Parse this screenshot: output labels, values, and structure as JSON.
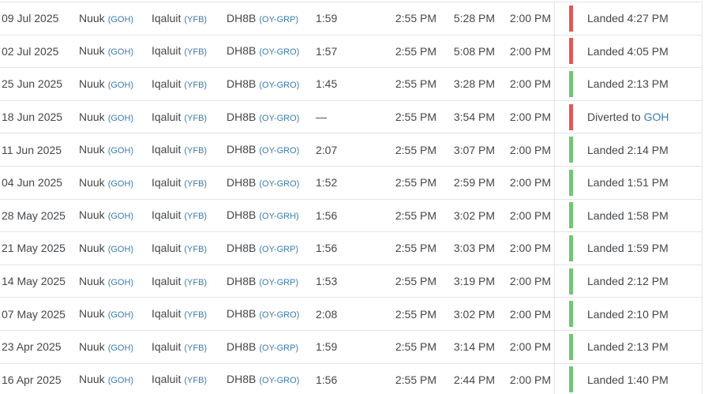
{
  "theme": {
    "link_blue": "#3a7cb1",
    "text_dark": "#43474b",
    "border": "#e3e3e3",
    "status_red": "#e25757",
    "status_green": "#71c673"
  },
  "table": {
    "rows": [
      {
        "date": "09 Jul 2025",
        "from_city": "Nuuk",
        "from_code": "(GOH)",
        "to_city": "Iqaluit",
        "to_code": "(YFB)",
        "aircraft": "DH8B",
        "registration": "(OY-GRP)",
        "flight_time": "1:59",
        "std": "2:55 PM",
        "atd": "5:28 PM",
        "sta": "2:00 PM",
        "status": "Landed 4:27 PM",
        "status_color": "red"
      },
      {
        "date": "02 Jul 2025",
        "from_city": "Nuuk",
        "from_code": "(GOH)",
        "to_city": "Iqaluit",
        "to_code": "(YFB)",
        "aircraft": "DH8B",
        "registration": "(OY-GRO)",
        "flight_time": "1:57",
        "std": "2:55 PM",
        "atd": "5:08 PM",
        "sta": "2:00 PM",
        "status": "Landed 4:05 PM",
        "status_color": "red"
      },
      {
        "date": "25 Jun 2025",
        "from_city": "Nuuk",
        "from_code": "(GOH)",
        "to_city": "Iqaluit",
        "to_code": "(YFB)",
        "aircraft": "DH8B",
        "registration": "(OY-GRO)",
        "flight_time": "1:45",
        "std": "2:55 PM",
        "atd": "3:28 PM",
        "sta": "2:00 PM",
        "status": "Landed 2:13 PM",
        "status_color": "green"
      },
      {
        "date": "18 Jun 2025",
        "from_city": "Nuuk",
        "from_code": "(GOH)",
        "to_city": "Iqaluit",
        "to_code": "(YFB)",
        "aircraft": "DH8B",
        "registration": "(OY-GRO)",
        "flight_time": "—",
        "std": "2:55 PM",
        "atd": "3:54 PM",
        "sta": "2:00 PM",
        "status": "Diverted to ",
        "status_link": "GOH",
        "status_color": "red"
      },
      {
        "date": "11 Jun 2025",
        "from_city": "Nuuk",
        "from_code": "(GOH)",
        "to_city": "Iqaluit",
        "to_code": "(YFB)",
        "aircraft": "DH8B",
        "registration": "(OY-GRO)",
        "flight_time": "2:07",
        "std": "2:55 PM",
        "atd": "3:07 PM",
        "sta": "2:00 PM",
        "status": "Landed 2:14 PM",
        "status_color": "green"
      },
      {
        "date": "04 Jun 2025",
        "from_city": "Nuuk",
        "from_code": "(GOH)",
        "to_city": "Iqaluit",
        "to_code": "(YFB)",
        "aircraft": "DH8B",
        "registration": "(OY-GRO)",
        "flight_time": "1:52",
        "std": "2:55 PM",
        "atd": "2:59 PM",
        "sta": "2:00 PM",
        "status": "Landed 1:51 PM",
        "status_color": "green"
      },
      {
        "date": "28 May 2025",
        "from_city": "Nuuk",
        "from_code": "(GOH)",
        "to_city": "Iqaluit",
        "to_code": "(YFB)",
        "aircraft": "DH8B",
        "registration": "(OY-GRH)",
        "flight_time": "1:56",
        "std": "2:55 PM",
        "atd": "3:02 PM",
        "sta": "2:00 PM",
        "status": "Landed 1:58 PM",
        "status_color": "green"
      },
      {
        "date": "21 May 2025",
        "from_city": "Nuuk",
        "from_code": "(GOH)",
        "to_city": "Iqaluit",
        "to_code": "(YFB)",
        "aircraft": "DH8B",
        "registration": "(OY-GRP)",
        "flight_time": "1:56",
        "std": "2:55 PM",
        "atd": "3:03 PM",
        "sta": "2:00 PM",
        "status": "Landed 1:59 PM",
        "status_color": "green"
      },
      {
        "date": "14 May 2025",
        "from_city": "Nuuk",
        "from_code": "(GOH)",
        "to_city": "Iqaluit",
        "to_code": "(YFB)",
        "aircraft": "DH8B",
        "registration": "(OY-GRP)",
        "flight_time": "1:53",
        "std": "2:55 PM",
        "atd": "3:19 PM",
        "sta": "2:00 PM",
        "status": "Landed 2:12 PM",
        "status_color": "green"
      },
      {
        "date": "07 May 2025",
        "from_city": "Nuuk",
        "from_code": "(GOH)",
        "to_city": "Iqaluit",
        "to_code": "(YFB)",
        "aircraft": "DH8B",
        "registration": "(OY-GRO)",
        "flight_time": "2:08",
        "std": "2:55 PM",
        "atd": "3:02 PM",
        "sta": "2:00 PM",
        "status": "Landed 2:10 PM",
        "status_color": "green"
      },
      {
        "date": "23 Apr 2025",
        "from_city": "Nuuk",
        "from_code": "(GOH)",
        "to_city": "Iqaluit",
        "to_code": "(YFB)",
        "aircraft": "DH8B",
        "registration": "(OY-GRP)",
        "flight_time": "1:59",
        "std": "2:55 PM",
        "atd": "3:14 PM",
        "sta": "2:00 PM",
        "status": "Landed 2:13 PM",
        "status_color": "green"
      },
      {
        "date": "16 Apr 2025",
        "from_city": "Nuuk",
        "from_code": "(GOH)",
        "to_city": "Iqaluit",
        "to_code": "(YFB)",
        "aircraft": "DH8B",
        "registration": "(OY-GRO)",
        "flight_time": "1:56",
        "std": "2:55 PM",
        "atd": "2:44 PM",
        "sta": "2:00 PM",
        "status": "Landed 1:40 PM",
        "status_color": "green"
      }
    ]
  }
}
